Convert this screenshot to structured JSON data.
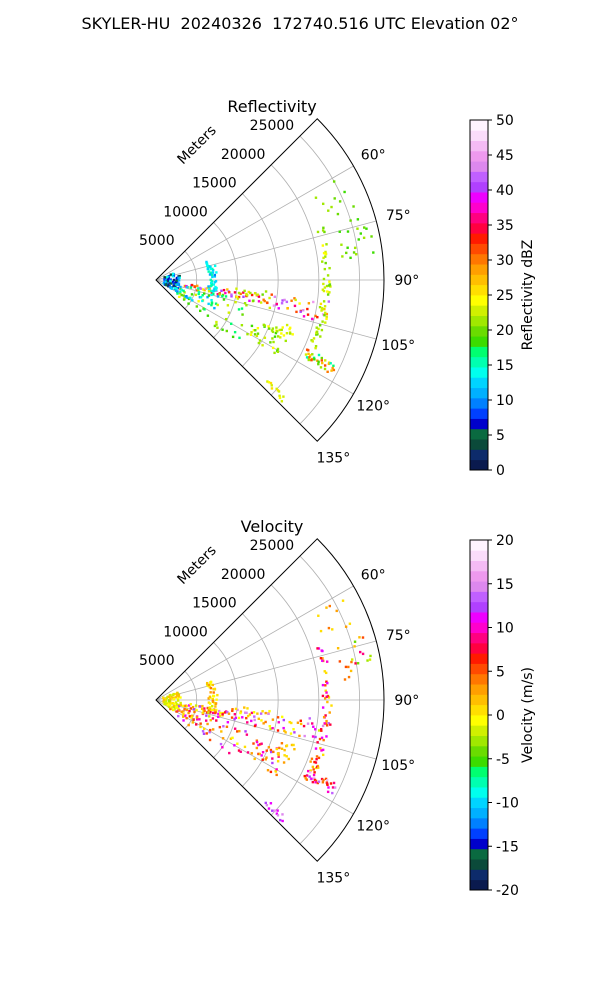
{
  "suptitle": "SKYLER-HU  20240326  172740.516 UTC Elevation 02°",
  "chart_data": [
    {
      "type": "scatter",
      "projection": "polar-sector",
      "title": "Reflectivity",
      "radius_label": "Meters",
      "r_ticks": [
        5000,
        10000,
        15000,
        20000,
        25000
      ],
      "r_max": 28000,
      "theta_ticks_deg": [
        60,
        75,
        90,
        105,
        120,
        135
      ],
      "theta_range_deg": [
        45,
        135
      ],
      "grid": true,
      "colorbar": {
        "label": "Reflectivity dBZ",
        "min": 0,
        "max": 50,
        "ticks": [
          0,
          5,
          10,
          15,
          20,
          25,
          30,
          35,
          40,
          45,
          50
        ],
        "colors": [
          "#0a1a4e",
          "#0d2b6b",
          "#0b4a3a",
          "#0a6a40",
          "#0000cc",
          "#0040ff",
          "#0080ff",
          "#00b0ff",
          "#00d4ff",
          "#00ffee",
          "#00ffb0",
          "#00ff70",
          "#3cdc00",
          "#6adc00",
          "#a0e800",
          "#d0f000",
          "#ffff00",
          "#ffdf00",
          "#ffbf00",
          "#ff9f00",
          "#ff7700",
          "#ff4a00",
          "#ff1a00",
          "#ff0040",
          "#ff0080",
          "#ff00cc",
          "#ee00ff",
          "#b040ff",
          "#c060ff",
          "#dd88ee",
          "#ee99ee",
          "#f4bbf4",
          "#fadcfa",
          "#fff4ff"
        ]
      },
      "segments": [
        {
          "theta": [
            97,
            104
          ],
          "r": [
            3500,
            21500
          ],
          "v": [
            22,
            45
          ],
          "n": 90
        },
        {
          "theta": [
            72,
            118
          ],
          "r": [
            20500,
            21500
          ],
          "v": [
            20,
            24
          ],
          "n": 60
        },
        {
          "theta": [
            73,
            84
          ],
          "r": [
            23000,
            27000
          ],
          "v": [
            18,
            22
          ],
          "n": 20
        },
        {
          "theta": [
            115,
            118
          ],
          "r": [
            20500,
            24500
          ],
          "v": [
            14,
            34
          ],
          "n": 30
        },
        {
          "theta": [
            70,
            120
          ],
          "r": [
            1000,
            3000
          ],
          "v": [
            2,
            14
          ],
          "n": 70
        },
        {
          "theta": [
            70,
            102
          ],
          "r": [
            6500,
            7500
          ],
          "v": [
            10,
            16
          ],
          "n": 45
        },
        {
          "theta": [
            102,
            128
          ],
          "r": [
            3000,
            12500
          ],
          "v": [
            16,
            24
          ],
          "n": 60
        },
        {
          "theta": [
            112,
            122
          ],
          "r": [
            13000,
            17500
          ],
          "v": [
            18,
            24
          ],
          "n": 35
        },
        {
          "theta": [
            101,
            122
          ],
          "r": [
            2000,
            8000
          ],
          "v": [
            10,
            18
          ],
          "n": 30
        },
        {
          "theta": [
            108,
            114
          ],
          "r": [
            16000,
            18000
          ],
          "v": [
            20,
            25
          ],
          "n": 15
        },
        {
          "theta": [
            132,
            134
          ],
          "r": [
            18500,
            21500
          ],
          "v": [
            22,
            26
          ],
          "n": 12
        },
        {
          "theta": [
            60,
            70
          ],
          "r": [
            22000,
            26000
          ],
          "v": [
            18,
            22
          ],
          "n": 10
        },
        {
          "theta": [
            95,
            99
          ],
          "r": [
            10000,
            14000
          ],
          "v": [
            20,
            24
          ],
          "n": 10
        }
      ]
    },
    {
      "type": "scatter",
      "projection": "polar-sector",
      "title": "Velocity",
      "radius_label": "Meters",
      "r_ticks": [
        5000,
        10000,
        15000,
        20000,
        25000
      ],
      "r_max": 28000,
      "theta_ticks_deg": [
        60,
        75,
        90,
        105,
        120,
        135
      ],
      "theta_range_deg": [
        45,
        135
      ],
      "grid": true,
      "colorbar": {
        "label": "Velocity (m/s)",
        "min": -20,
        "max": 20,
        "ticks": [
          -20,
          -15,
          -10,
          -5,
          0,
          5,
          10,
          15,
          20
        ],
        "colors": [
          "#0a1a4e",
          "#0d2b6b",
          "#0b4a3a",
          "#0a6a40",
          "#0000cc",
          "#0040ff",
          "#0080ff",
          "#00b0ff",
          "#00d4ff",
          "#00ffee",
          "#00ffb0",
          "#00ff70",
          "#3cdc00",
          "#6adc00",
          "#a0e800",
          "#d0f000",
          "#ffff00",
          "#ffdf00",
          "#ffbf00",
          "#ff9f00",
          "#ff7700",
          "#ff4a00",
          "#ff1a00",
          "#ff0040",
          "#ff0080",
          "#ff00cc",
          "#ee00ff",
          "#b040ff",
          "#c060ff",
          "#dd88ee",
          "#ee99ee",
          "#f4bbf4",
          "#fadcfa",
          "#fff4ff"
        ]
      },
      "segments": [
        {
          "theta": [
            97,
            104
          ],
          "r": [
            3500,
            21500
          ],
          "v": [
            -2,
            15
          ],
          "n": 90
        },
        {
          "theta": [
            72,
            118
          ],
          "r": [
            20500,
            21500
          ],
          "v": [
            0,
            12
          ],
          "n": 60
        },
        {
          "theta": [
            73,
            84
          ],
          "r": [
            23000,
            27000
          ],
          "v": [
            -4,
            10
          ],
          "n": 20
        },
        {
          "theta": [
            115,
            118
          ],
          "r": [
            20500,
            24500
          ],
          "v": [
            2,
            17
          ],
          "n": 30
        },
        {
          "theta": [
            70,
            120
          ],
          "r": [
            1000,
            3000
          ],
          "v": [
            -3,
            2
          ],
          "n": 70
        },
        {
          "theta": [
            70,
            102
          ],
          "r": [
            6500,
            7500
          ],
          "v": [
            -2,
            4
          ],
          "n": 45
        },
        {
          "theta": [
            102,
            128
          ],
          "r": [
            3000,
            12500
          ],
          "v": [
            -1,
            14
          ],
          "n": 60
        },
        {
          "theta": [
            112,
            122
          ],
          "r": [
            13000,
            17500
          ],
          "v": [
            0,
            12
          ],
          "n": 35
        },
        {
          "theta": [
            101,
            122
          ],
          "r": [
            2000,
            8000
          ],
          "v": [
            -2,
            6
          ],
          "n": 30
        },
        {
          "theta": [
            108,
            114
          ],
          "r": [
            16000,
            18000
          ],
          "v": [
            0,
            4
          ],
          "n": 15
        },
        {
          "theta": [
            132,
            134
          ],
          "r": [
            18500,
            21500
          ],
          "v": [
            10,
            16
          ],
          "n": 12
        },
        {
          "theta": [
            60,
            70
          ],
          "r": [
            22000,
            26000
          ],
          "v": [
            0,
            4
          ],
          "n": 10
        },
        {
          "theta": [
            95,
            99
          ],
          "r": [
            10000,
            14000
          ],
          "v": [
            -1,
            3
          ],
          "n": 10
        }
      ]
    }
  ]
}
